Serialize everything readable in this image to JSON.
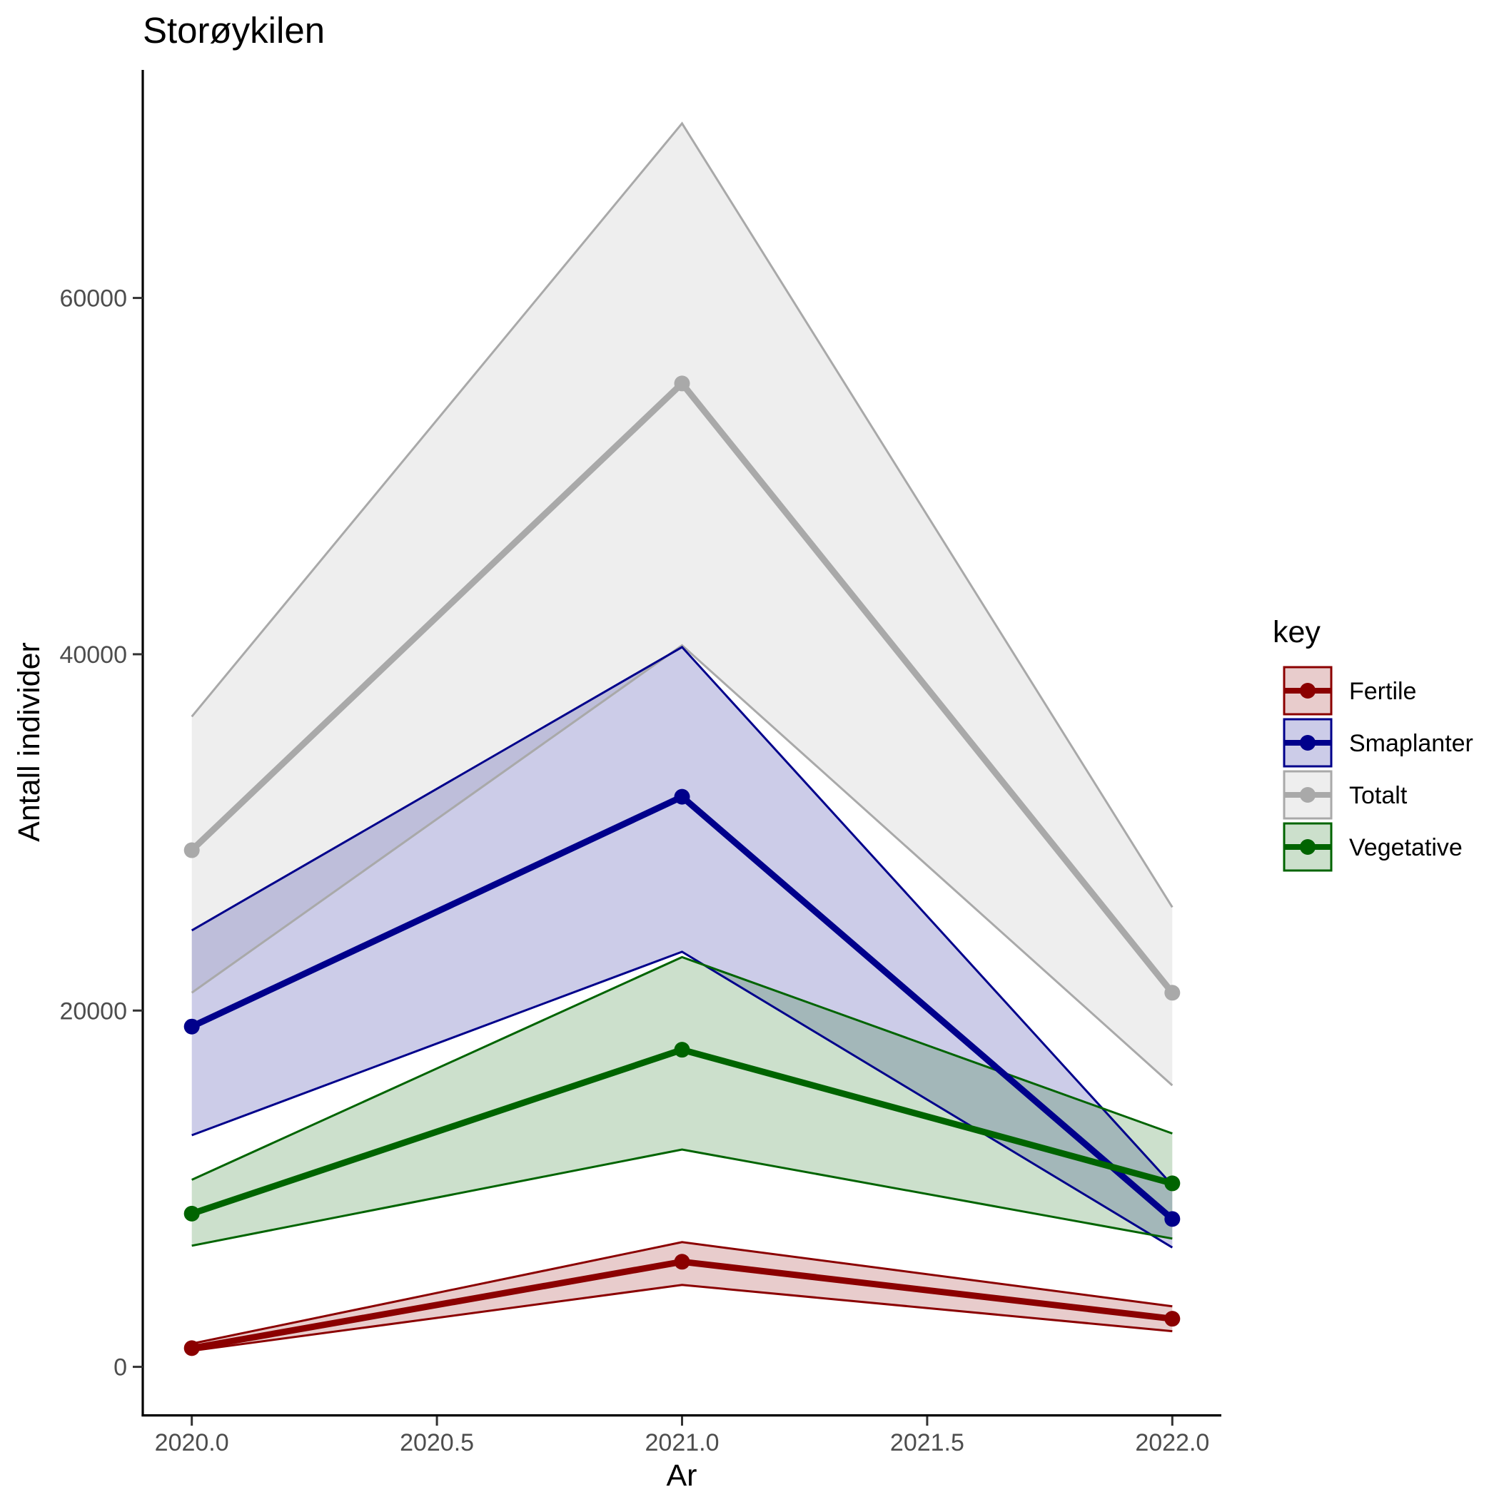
{
  "chart_data": {
    "type": "line",
    "title": "Storøykilen",
    "xlabel": "Ar",
    "ylabel": "Antall individer",
    "xlim": [
      2019.9,
      2022.1
    ],
    "ylim": [
      -2700,
      72800
    ],
    "x_ticks": [
      2020.0,
      2020.5,
      2021.0,
      2021.5,
      2022.0
    ],
    "x_tick_labels": [
      "2020.0",
      "2020.5",
      "2021.0",
      "2021.5",
      "2022.0"
    ],
    "y_ticks": [
      0,
      20000,
      40000,
      60000
    ],
    "y_tick_labels": [
      "0",
      "20000",
      "40000",
      "60000"
    ],
    "grid": false,
    "legend": {
      "title": "key",
      "position": "right"
    },
    "series": [
      {
        "name": "Totalt",
        "color": "#a9a9a9",
        "x": [
          2020,
          2021,
          2022
        ],
        "values": [
          29000,
          55200,
          21000
        ],
        "lower": [
          21000,
          40500,
          15800
        ],
        "upper": [
          36500,
          69800,
          25800
        ]
      },
      {
        "name": "Smaplanter",
        "color": "#00008b",
        "x": [
          2020,
          2021,
          2022
        ],
        "values": [
          19100,
          32000,
          8300
        ],
        "lower": [
          13000,
          23300,
          6700
        ],
        "upper": [
          24500,
          40400,
          10200
        ]
      },
      {
        "name": "Vegetative",
        "color": "#006400",
        "x": [
          2020,
          2021,
          2022
        ],
        "values": [
          8600,
          17800,
          10300
        ],
        "lower": [
          6800,
          12200,
          7200
        ],
        "upper": [
          10500,
          23000,
          13100
        ]
      },
      {
        "name": "Fertile",
        "color": "#8b0000",
        "x": [
          2020,
          2021,
          2022
        ],
        "values": [
          1050,
          5900,
          2700
        ],
        "lower": [
          900,
          4600,
          2000
        ],
        "upper": [
          1300,
          7000,
          3400
        ]
      }
    ],
    "legend_order": [
      "Fertile",
      "Smaplanter",
      "Totalt",
      "Vegetative"
    ]
  }
}
